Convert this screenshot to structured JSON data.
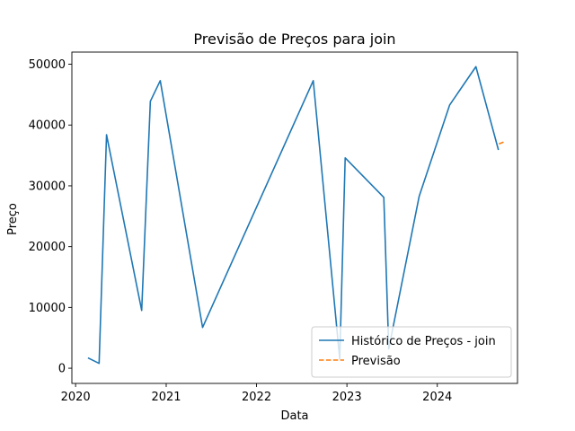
{
  "chart_data": {
    "type": "line",
    "title": "Previsão de Preços para join",
    "xlabel": "Data",
    "ylabel": "Preço",
    "xlim": [
      "2019-12-17",
      "2024-11-20"
    ],
    "ylim": [
      -2500,
      52000
    ],
    "x_ticks": [
      "2020",
      "2021",
      "2022",
      "2023",
      "2024"
    ],
    "y_ticks": [
      0,
      10000,
      20000,
      30000,
      40000,
      50000
    ],
    "legend_position": "lower-right",
    "grid": false,
    "series": [
      {
        "name": "Histórico de Preços - join",
        "color": "#1f77b4",
        "style": "solid",
        "points": [
          [
            "2020-02-20",
            1700
          ],
          [
            "2020-04-05",
            800
          ],
          [
            "2020-05-05",
            38400
          ],
          [
            "2020-09-24",
            9500
          ],
          [
            "2020-10-29",
            43900
          ],
          [
            "2020-12-08",
            47300
          ],
          [
            "2021-05-28",
            6700
          ],
          [
            "2022-08-18",
            47300
          ],
          [
            "2022-12-03",
            1500
          ],
          [
            "2022-12-25",
            34600
          ],
          [
            "2023-05-30",
            28100
          ],
          [
            "2023-06-19",
            3200
          ],
          [
            "2023-10-20",
            28300
          ],
          [
            "2024-02-20",
            43300
          ],
          [
            "2024-06-05",
            49600
          ],
          [
            "2024-09-04",
            35900
          ]
        ]
      },
      {
        "name": "Previsão",
        "color": "#ff7f0e",
        "style": "dashed",
        "points": [
          [
            "2024-09-06",
            36900
          ],
          [
            "2024-10-01",
            37300
          ]
        ]
      }
    ]
  }
}
